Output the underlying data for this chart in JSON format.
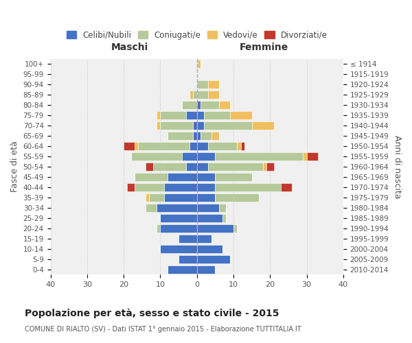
{
  "age_groups": [
    "0-4",
    "5-9",
    "10-14",
    "15-19",
    "20-24",
    "25-29",
    "30-34",
    "35-39",
    "40-44",
    "45-49",
    "50-54",
    "55-59",
    "60-64",
    "65-69",
    "70-74",
    "75-79",
    "80-84",
    "85-89",
    "90-94",
    "95-99",
    "100+"
  ],
  "birth_years": [
    "2010-2014",
    "2005-2009",
    "2000-2004",
    "1995-1999",
    "1990-1994",
    "1985-1989",
    "1980-1984",
    "1975-1979",
    "1970-1974",
    "1965-1969",
    "1960-1964",
    "1955-1959",
    "1950-1954",
    "1945-1949",
    "1940-1944",
    "1935-1939",
    "1930-1934",
    "1925-1929",
    "1920-1924",
    "1915-1919",
    "≤ 1914"
  ],
  "maschi_celibi": [
    8,
    5,
    10,
    5,
    10,
    10,
    11,
    9,
    9,
    8,
    3,
    4,
    2,
    1,
    1,
    3,
    0,
    0,
    0,
    0,
    0
  ],
  "maschi_coniugati": [
    0,
    0,
    0,
    0,
    1,
    0,
    3,
    4,
    8,
    9,
    9,
    14,
    14,
    7,
    9,
    7,
    4,
    1,
    0,
    0,
    0
  ],
  "maschi_vedovi": [
    0,
    0,
    0,
    0,
    0,
    0,
    0,
    1,
    0,
    0,
    0,
    0,
    1,
    0,
    1,
    1,
    0,
    1,
    0,
    0,
    0
  ],
  "maschi_divorziati": [
    0,
    0,
    0,
    0,
    0,
    0,
    0,
    0,
    2,
    0,
    2,
    0,
    3,
    0,
    0,
    0,
    0,
    0,
    0,
    0,
    0
  ],
  "femmine_celibi": [
    5,
    9,
    7,
    4,
    10,
    7,
    6,
    5,
    5,
    5,
    3,
    5,
    3,
    1,
    2,
    2,
    1,
    0,
    0,
    0,
    0
  ],
  "femmine_coniugati": [
    0,
    0,
    0,
    0,
    1,
    1,
    2,
    12,
    18,
    10,
    15,
    24,
    8,
    3,
    13,
    7,
    5,
    3,
    3,
    0,
    0
  ],
  "femmine_vedovi": [
    0,
    0,
    0,
    0,
    0,
    0,
    0,
    0,
    0,
    0,
    1,
    1,
    1,
    2,
    6,
    6,
    3,
    3,
    3,
    0,
    1
  ],
  "femmine_divorziati": [
    0,
    0,
    0,
    0,
    0,
    0,
    0,
    0,
    3,
    0,
    2,
    3,
    1,
    0,
    0,
    0,
    0,
    0,
    0,
    0,
    0
  ],
  "color_celibi": "#4472c4",
  "color_coniugati": "#b5c99a",
  "color_vedovi": "#f0c060",
  "color_divorziati": "#c0392b",
  "title": "Popolazione per età, sesso e stato civile - 2015",
  "subtitle": "COMUNE DI RIALTO (SV) - Dati ISTAT 1° gennaio 2015 - Elaborazione TUTTITALIA.IT",
  "xlabel_left": "Maschi",
  "xlabel_right": "Femmine",
  "ylabel_left": "Fasce di età",
  "ylabel_right": "Anni di nascita",
  "xlim": 40,
  "background_color": "#ffffff",
  "plot_bg_color": "#f0f0f0",
  "grid_color": "#cccccc"
}
